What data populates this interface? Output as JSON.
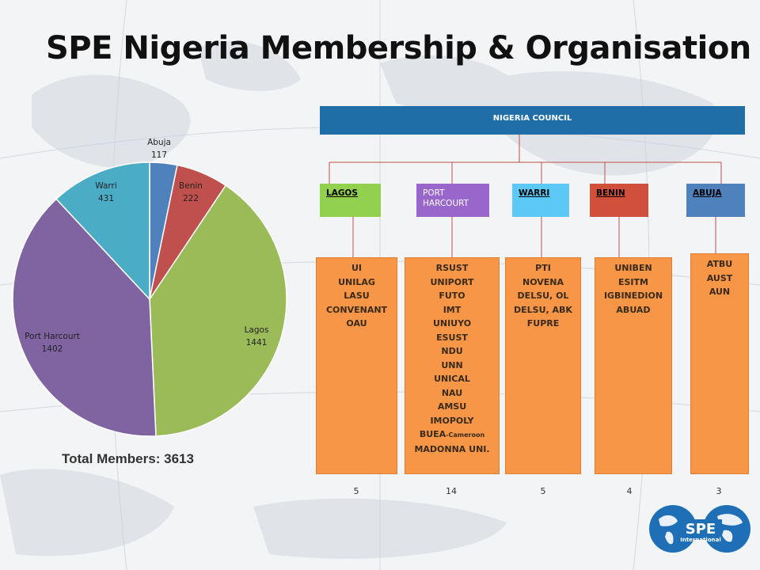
{
  "title": "SPE Nigeria Membership & Organisation",
  "total_label": "Total Members:",
  "total_value": "3613",
  "chart_data": {
    "type": "pie",
    "categories": [
      "Abuja",
      "Benin",
      "Lagos",
      "Port Harcourt",
      "Warri"
    ],
    "values": [
      117,
      222,
      1441,
      1402,
      431
    ],
    "colors": [
      "#4f81bd",
      "#c0504d",
      "#9bbb59",
      "#8064a2",
      "#4bacc6"
    ]
  },
  "org": {
    "council": "NIGERIA COUNCIL",
    "regions": [
      {
        "name": "LAGOS",
        "color": "#92d050",
        "schools": [
          "UI",
          "UNILAG",
          "LASU",
          "CONVENANT",
          "OAU"
        ],
        "count": "5"
      },
      {
        "name": "PORT HARCOURT",
        "color": "#9966cc",
        "schools": [
          "RSUST",
          "UNIPORT",
          "FUTO",
          "IMT",
          "UNIUYO",
          "ESUST",
          "NDU",
          "UNN",
          "UNICAL",
          "NAU",
          "AMSU",
          "IMOPOLY"
        ],
        "buea": "BUEA",
        "buea_note": "-Cameroon",
        "madonna": "MADONNA UNI.",
        "count": "14"
      },
      {
        "name": "WARRI",
        "color": "#5bc8f5",
        "schools": [
          "PTI",
          "NOVENA",
          "DELSU, OL",
          "DELSU, ABK",
          "FUPRE"
        ],
        "count": "5"
      },
      {
        "name": "BENIN",
        "color": "#d0503c",
        "schools": [
          "UNIBEN",
          "ESITM",
          "IGBINEDION",
          "ABUAD"
        ],
        "count": "4"
      },
      {
        "name": "ABUJA",
        "color": "#4f81bd",
        "schools": [
          "ATBU",
          "AUST",
          "AUN"
        ],
        "count": "3"
      }
    ]
  },
  "logo": {
    "text": "SPE",
    "subtext": "International"
  }
}
